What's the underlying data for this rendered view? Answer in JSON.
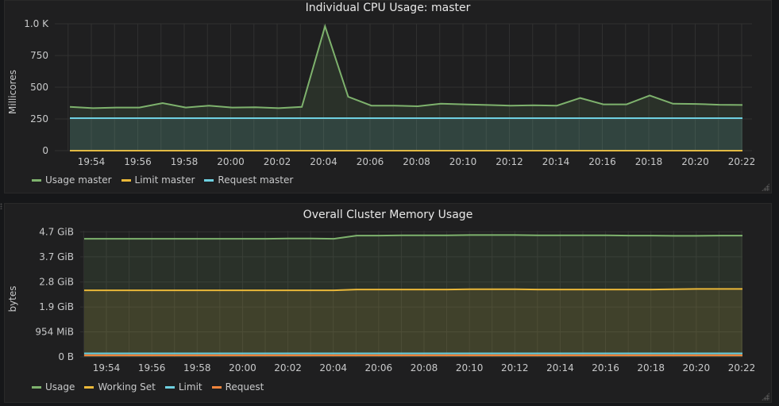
{
  "chart_data": [
    {
      "type": "line",
      "title": "Individual CPU Usage: master",
      "ylabel": "Millicores",
      "xlabel": "",
      "ylim": [
        0,
        1000
      ],
      "ytick_labels": [
        "0",
        "250",
        "500",
        "750",
        "1.0 K"
      ],
      "ytick_values": [
        0,
        250,
        500,
        750,
        1000
      ],
      "xtick_labels": [
        "19:54",
        "19:56",
        "19:58",
        "20:00",
        "20:02",
        "20:04",
        "20:06",
        "20:08",
        "20:10",
        "20:12",
        "20:14",
        "20:16",
        "20:18",
        "20:20",
        "20:22"
      ],
      "grid": true,
      "legend_position": "bottom-left",
      "series": [
        {
          "name": "Usage master",
          "color": "#7eb26d",
          "fill": true,
          "values": [
            345,
            335,
            340,
            340,
            375,
            340,
            355,
            340,
            342,
            335,
            345,
            980,
            425,
            355,
            355,
            350,
            370,
            365,
            360,
            355,
            358,
            355,
            415,
            365,
            365,
            435,
            370,
            368,
            362,
            360
          ]
        },
        {
          "name": "Limit master",
          "color": "#eab839",
          "fill": false,
          "values": [
            0,
            0,
            0,
            0,
            0,
            0,
            0,
            0,
            0,
            0,
            0,
            0,
            0,
            0,
            0,
            0,
            0,
            0,
            0,
            0,
            0,
            0,
            0,
            0,
            0,
            0,
            0,
            0,
            0,
            0
          ]
        },
        {
          "name": "Request master",
          "color": "#6ed0e0",
          "fill": true,
          "values": [
            256,
            256,
            256,
            256,
            256,
            256,
            256,
            256,
            256,
            256,
            256,
            256,
            256,
            256,
            256,
            256,
            256,
            256,
            256,
            256,
            256,
            256,
            256,
            256,
            256,
            256,
            256,
            256,
            256,
            256
          ]
        }
      ]
    },
    {
      "type": "line",
      "title": "Overall Cluster Memory Usage",
      "ylabel": "bytes",
      "xlabel": "",
      "ylim": [
        0,
        4.7
      ],
      "ytick_labels": [
        "0 B",
        "954 MiB",
        "1.9 GiB",
        "2.8 GiB",
        "3.7 GiB",
        "4.7 GiB"
      ],
      "ytick_values": [
        0,
        0.93,
        1.86,
        2.79,
        3.73,
        4.66
      ],
      "xtick_labels": [
        "19:54",
        "19:56",
        "19:58",
        "20:00",
        "20:02",
        "20:04",
        "20:06",
        "20:08",
        "20:10",
        "20:12",
        "20:14",
        "20:16",
        "20:18",
        "20:20",
        "20:22"
      ],
      "grid": true,
      "legend_position": "bottom-left",
      "series": [
        {
          "name": "Usage",
          "color": "#7eb26d",
          "fill": true,
          "values": [
            4.4,
            4.4,
            4.4,
            4.4,
            4.4,
            4.4,
            4.4,
            4.4,
            4.4,
            4.41,
            4.41,
            4.4,
            4.52,
            4.52,
            4.53,
            4.53,
            4.53,
            4.54,
            4.54,
            4.54,
            4.53,
            4.53,
            4.53,
            4.53,
            4.52,
            4.52,
            4.51,
            4.51,
            4.52,
            4.52
          ]
        },
        {
          "name": "Working Set",
          "color": "#eab839",
          "fill": true,
          "values": [
            2.48,
            2.48,
            2.48,
            2.48,
            2.48,
            2.48,
            2.48,
            2.48,
            2.48,
            2.48,
            2.48,
            2.48,
            2.51,
            2.51,
            2.51,
            2.51,
            2.51,
            2.52,
            2.52,
            2.52,
            2.51,
            2.51,
            2.51,
            2.51,
            2.51,
            2.51,
            2.52,
            2.53,
            2.53,
            2.53
          ]
        },
        {
          "name": "Limit",
          "color": "#6ed0e0",
          "fill": true,
          "values": [
            0.13,
            0.13,
            0.13,
            0.13,
            0.13,
            0.13,
            0.13,
            0.13,
            0.13,
            0.13,
            0.13,
            0.13,
            0.13,
            0.13,
            0.13,
            0.13,
            0.13,
            0.13,
            0.13,
            0.13,
            0.13,
            0.13,
            0.13,
            0.13,
            0.13,
            0.13,
            0.13,
            0.13,
            0.13,
            0.13
          ]
        },
        {
          "name": "Request",
          "color": "#ef843c",
          "fill": true,
          "values": [
            0.06,
            0.06,
            0.06,
            0.06,
            0.06,
            0.06,
            0.06,
            0.06,
            0.06,
            0.06,
            0.06,
            0.06,
            0.06,
            0.06,
            0.06,
            0.06,
            0.06,
            0.06,
            0.06,
            0.06,
            0.06,
            0.06,
            0.06,
            0.06,
            0.06,
            0.06,
            0.06,
            0.06,
            0.06,
            0.06
          ]
        }
      ]
    }
  ]
}
